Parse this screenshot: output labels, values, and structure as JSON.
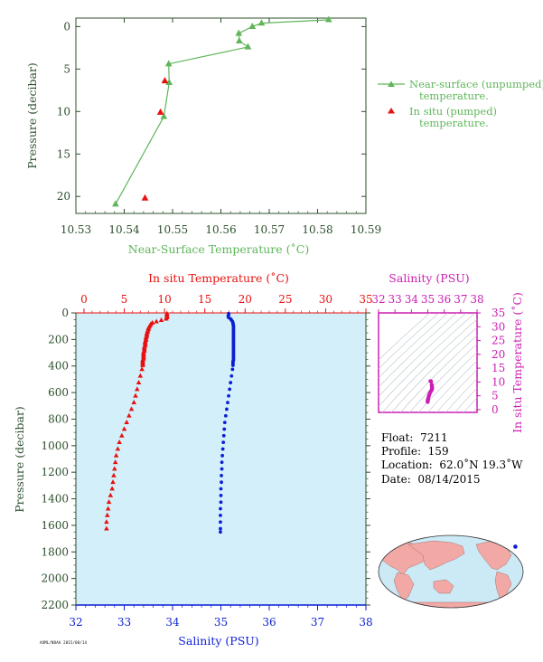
{
  "colors": {
    "green": "#5fb65a",
    "red": "#e8110f",
    "blue": "#0b1fd4",
    "magenta": "#cc1eb4",
    "panel_fill": "#d2effa",
    "axis": "#2d4f2d"
  },
  "chart_data": [
    {
      "type": "line",
      "xlabel": "Near-Surface Temperature (˚C)",
      "ylabel": "Pressure (decibar)",
      "xlim": [
        10.53,
        10.59
      ],
      "ylim": [
        22,
        -1
      ],
      "x_ticks": [
        "10.53",
        "10.54",
        "10.55",
        "10.56",
        "10.57",
        "10.58",
        "10.59"
      ],
      "y_ticks": [
        "0",
        "5",
        "10",
        "15",
        "20"
      ],
      "legend_position": "right",
      "series": [
        {
          "name": "Near-surface (unpumped) temperature.",
          "marker": "triangle",
          "x": [
            10.5823,
            10.5684,
            10.5665,
            10.5637,
            10.5638,
            10.5656,
            10.5492,
            10.5493,
            10.5482,
            10.5382
          ],
          "y": [
            -0.8,
            -0.4,
            0.0,
            0.8,
            1.7,
            2.4,
            4.4,
            6.6,
            10.6,
            20.9
          ]
        },
        {
          "name": "In situ (pumped) temperature.",
          "marker": "triangle",
          "x": [
            10.5484,
            10.5475,
            10.5443
          ],
          "y": [
            6.4,
            10.1,
            20.2
          ]
        }
      ]
    },
    {
      "type": "scatter",
      "x_top_label": "In situ Temperature (˚C)",
      "x_bottom_label": "Salinity (PSU)",
      "ylabel": "Pressure (decibar)",
      "temp_ticks": [
        "0",
        "5",
        "10",
        "15",
        "20",
        "25",
        "30",
        "35"
      ],
      "sal_ticks": [
        "32",
        "33",
        "34",
        "35",
        "36",
        "37",
        "38"
      ],
      "p_ticks": [
        "0",
        "200",
        "400",
        "600",
        "800",
        "1000",
        "1200",
        "1400",
        "1600",
        "1800",
        "2000",
        "2200"
      ],
      "temp_range": [
        -1,
        35
      ],
      "sal_range": [
        32,
        38
      ],
      "p_range": [
        0,
        2200
      ],
      "temperature_profile": {
        "marker": "triangle",
        "p": [
          5,
          15,
          25,
          35,
          45,
          55,
          65,
          75,
          85,
          95,
          105,
          115,
          125,
          135,
          145,
          155,
          165,
          175,
          185,
          195,
          205,
          215,
          225,
          235,
          245,
          255,
          265,
          275,
          285,
          295,
          305,
          315,
          325,
          335,
          345,
          355,
          365,
          375,
          385,
          395,
          425,
          475,
          525,
          575,
          625,
          675,
          725,
          775,
          825,
          875,
          925,
          975,
          1025,
          1075,
          1125,
          1175,
          1225,
          1275,
          1325,
          1375,
          1425,
          1475,
          1525,
          1575,
          1625
        ],
        "t": [
          10.3,
          10.3,
          10.3,
          10.3,
          10.2,
          9.6,
          9.0,
          8.5,
          8.3,
          8.2,
          8.1,
          8.0,
          8.0,
          7.9,
          7.9,
          7.8,
          7.8,
          7.8,
          7.7,
          7.7,
          7.7,
          7.6,
          7.6,
          7.6,
          7.6,
          7.5,
          7.5,
          7.5,
          7.5,
          7.4,
          7.4,
          7.4,
          7.4,
          7.4,
          7.4,
          7.3,
          7.3,
          7.3,
          7.3,
          7.3,
          7.2,
          7.0,
          6.8,
          6.6,
          6.4,
          6.2,
          5.9,
          5.6,
          5.3,
          5.0,
          4.7,
          4.4,
          4.2,
          4.0,
          3.9,
          3.8,
          3.7,
          3.6,
          3.5,
          3.3,
          3.1,
          3.0,
          2.9,
          2.8,
          2.8
        ]
      },
      "salinity_profile": {
        "marker": "dot",
        "p": [
          5,
          15,
          25,
          35,
          45,
          55,
          65,
          75,
          85,
          95,
          105,
          115,
          125,
          135,
          145,
          155,
          165,
          175,
          185,
          195,
          205,
          215,
          225,
          235,
          245,
          255,
          265,
          275,
          285,
          295,
          305,
          315,
          325,
          335,
          345,
          355,
          365,
          375,
          385,
          395,
          425,
          475,
          525,
          575,
          625,
          675,
          725,
          775,
          825,
          875,
          925,
          975,
          1025,
          1075,
          1125,
          1175,
          1225,
          1275,
          1325,
          1375,
          1425,
          1475,
          1525,
          1575,
          1625,
          1650
        ],
        "s": [
          35.16,
          35.16,
          35.15,
          35.16,
          35.2,
          35.22,
          35.24,
          35.25,
          35.25,
          35.26,
          35.26,
          35.26,
          35.26,
          35.26,
          35.26,
          35.26,
          35.26,
          35.26,
          35.26,
          35.26,
          35.26,
          35.26,
          35.26,
          35.26,
          35.26,
          35.26,
          35.26,
          35.26,
          35.26,
          35.26,
          35.26,
          35.26,
          35.26,
          35.26,
          35.26,
          35.26,
          35.25,
          35.25,
          35.25,
          35.25,
          35.24,
          35.22,
          35.2,
          35.18,
          35.16,
          35.14,
          35.12,
          35.1,
          35.08,
          35.07,
          35.06,
          35.05,
          35.04,
          35.03,
          35.02,
          35.02,
          35.01,
          35.01,
          35.0,
          35.0,
          35.0,
          34.99,
          34.99,
          34.99,
          34.99,
          34.99
        ]
      }
    },
    {
      "type": "scatter",
      "xlabel": "Salinity (PSU)",
      "ylabel": "In situ Temperature (˚C)",
      "x_ticks": [
        "32",
        "33",
        "34",
        "35",
        "36",
        "37",
        "38"
      ],
      "y_ticks": [
        "0",
        "5",
        "10",
        "15",
        "20",
        "25",
        "30",
        "35"
      ],
      "xlim": [
        32,
        38
      ],
      "ylim": [
        -1,
        35
      ],
      "points": {
        "s": [
          35.16,
          35.2,
          35.24,
          35.25,
          35.26,
          35.26,
          35.25,
          35.22,
          35.18,
          35.14,
          35.1,
          35.07,
          35.04,
          35.02,
          35.01,
          35.0,
          34.99,
          34.99
        ],
        "t": [
          10.3,
          10.2,
          9.0,
          8.3,
          8.0,
          7.7,
          7.3,
          7.0,
          6.6,
          6.2,
          5.6,
          5.0,
          4.4,
          3.9,
          3.6,
          3.3,
          3.0,
          2.8
        ]
      }
    }
  ],
  "info": {
    "float_label": "Float:",
    "float_value": "7211",
    "profile_label": "Profile:",
    "profile_value": "159",
    "location_label": "Location:",
    "location_value": "62.0˚N  19.3˚W",
    "date_label": "Date:",
    "date_value": "08/14/2015"
  },
  "map": {
    "float_lat": 62.0,
    "float_lon": -19.3
  },
  "footer": "AOML/NOAA 2015/08/14"
}
